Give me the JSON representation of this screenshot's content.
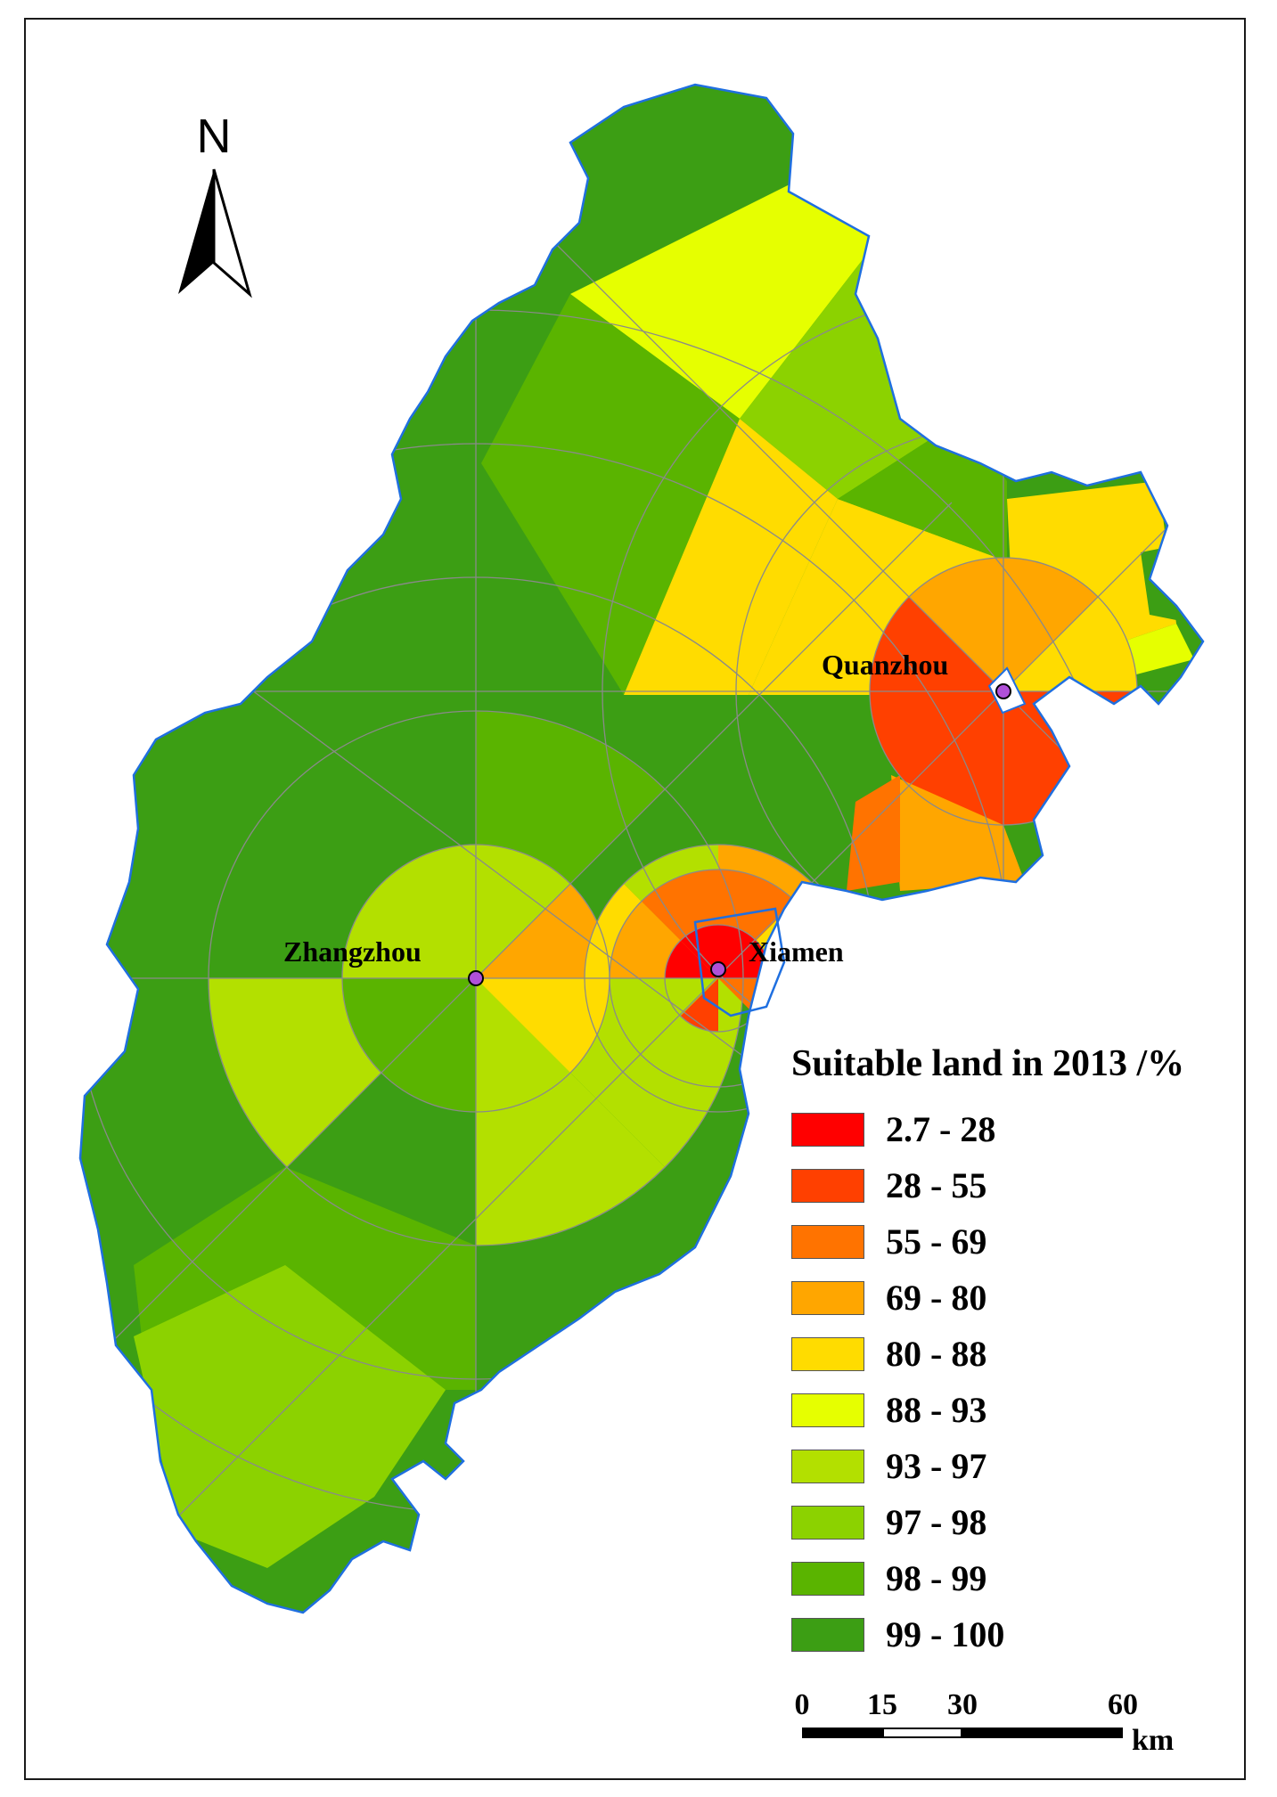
{
  "map": {
    "north_label": "N",
    "cities": [
      {
        "key": "quanzhou",
        "name": "Quanzhou"
      },
      {
        "key": "zhangzhou",
        "name": "Zhangzhou"
      },
      {
        "key": "xiamen",
        "name": "Xiamen"
      }
    ]
  },
  "legend": {
    "title": "Suitable land in 2013 /%",
    "classes": [
      {
        "label": "2.7 - 28",
        "color": "#ff0000"
      },
      {
        "label": "28 - 55",
        "color": "#ff4000"
      },
      {
        "label": "55 - 69",
        "color": "#ff7300"
      },
      {
        "label": "69 - 80",
        "color": "#ffa600"
      },
      {
        "label": "80 - 88",
        "color": "#ffdc00"
      },
      {
        "label": "88 - 93",
        "color": "#e6ff00"
      },
      {
        "label": "93 - 97",
        "color": "#b3e000"
      },
      {
        "label": "97 - 98",
        "color": "#8cd200"
      },
      {
        "label": "98 - 99",
        "color": "#5ab400"
      },
      {
        "label": "99 - 100",
        "color": "#3c9e14"
      }
    ]
  },
  "scale_bar": {
    "ticks": [
      "0",
      "15",
      "30",
      "60"
    ],
    "unit": "km"
  }
}
